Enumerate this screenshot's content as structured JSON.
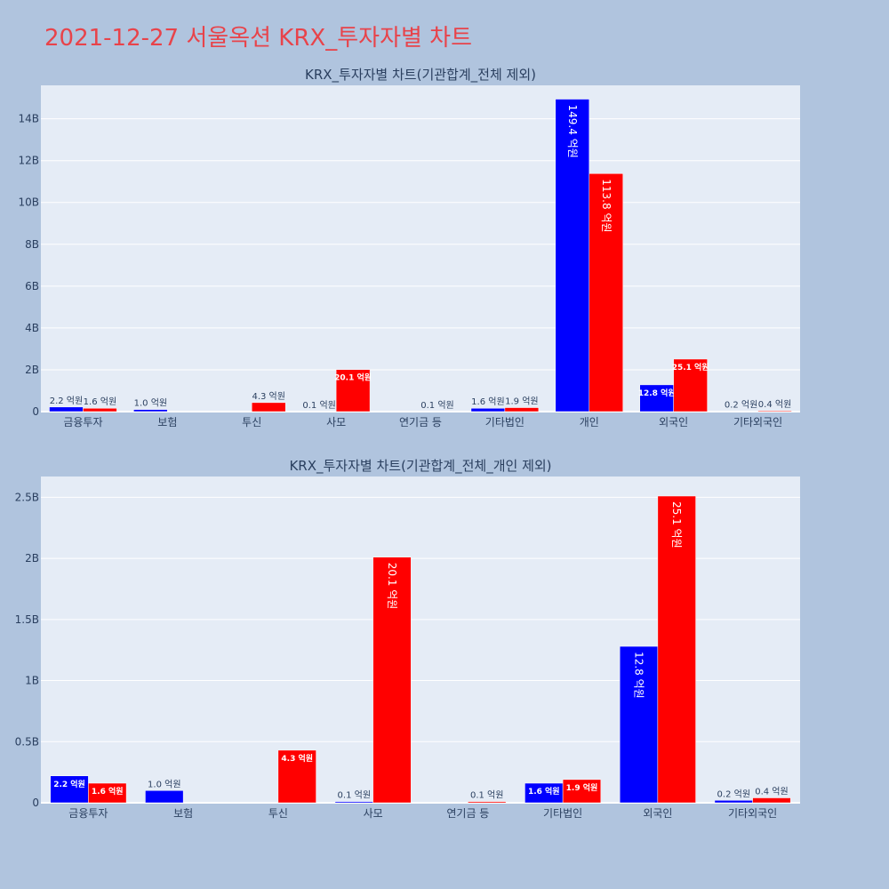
{
  "page": {
    "title": "2021-12-27 서울옥션 KRX_투자자별 차트"
  },
  "colors": {
    "background": "#b0c4de",
    "plot_bg": "#e5ecf6",
    "grid": "#ffffff",
    "buy": "#0000ff",
    "sell": "#ff0000",
    "title": "#e8434a"
  },
  "chart_data": [
    {
      "type": "bar",
      "title": "KRX_투자자별 차트(기관합계_전체 제외)",
      "xlabel": "",
      "ylabel": "",
      "ylim": [
        0,
        15.6
      ],
      "yticks": [
        0,
        2,
        4,
        6,
        8,
        10,
        12,
        14
      ],
      "ytick_labels": [
        "0",
        "2B",
        "4B",
        "6B",
        "8B",
        "10B",
        "12B",
        "14B"
      ],
      "grid": true,
      "categories": [
        "금융투자",
        "보험",
        "투신",
        "사모",
        "연기금 등",
        "기타법인",
        "개인",
        "외국인",
        "기타외국인"
      ],
      "series": [
        {
          "color": "#0000ff",
          "values": [
            0.22,
            0.1,
            0,
            0.01,
            0,
            0.16,
            14.94,
            1.28,
            0.02
          ],
          "labels": [
            "2.2 억원",
            "1.0 억원",
            "",
            "0.1 억원",
            "",
            "1.6 억원",
            "149.4 억원",
            "12.8 억원",
            "0.2 억원"
          ]
        },
        {
          "color": "#ff0000",
          "values": [
            0.16,
            0,
            0.43,
            2.01,
            0.01,
            0.19,
            11.38,
            2.51,
            0.04
          ],
          "labels": [
            "1.6 억원",
            "",
            "4.3 억원",
            "20.1 억원",
            "0.1 억원",
            "1.9 억원",
            "113.8 억원",
            "25.1 억원",
            "0.4 억원"
          ]
        }
      ]
    },
    {
      "type": "bar",
      "title": "KRX_투자자별 차트(기관합계_전체_개인 제외)",
      "xlabel": "",
      "ylabel": "",
      "ylim": [
        0,
        2.67
      ],
      "yticks": [
        0,
        0.5,
        1,
        1.5,
        2,
        2.5
      ],
      "ytick_labels": [
        "0",
        "0.5B",
        "1B",
        "1.5B",
        "2B",
        "2.5B"
      ],
      "grid": true,
      "categories": [
        "금융투자",
        "보험",
        "투신",
        "사모",
        "연기금 등",
        "기타법인",
        "외국인",
        "기타외국인"
      ],
      "series": [
        {
          "color": "#0000ff",
          "values": [
            0.22,
            0.1,
            0,
            0.01,
            0,
            0.16,
            1.28,
            0.02
          ],
          "labels": [
            "2.2 억원",
            "1.0 억원",
            "",
            "0.1 억원",
            "",
            "1.6 억원",
            "12.8 억원",
            "0.2 억원"
          ]
        },
        {
          "color": "#ff0000",
          "values": [
            0.16,
            0,
            0.43,
            2.01,
            0.01,
            0.19,
            2.51,
            0.04
          ],
          "labels": [
            "1.6 억원",
            "",
            "4.3 억원",
            "20.1 억원",
            "0.1 억원",
            "1.9 억원",
            "25.1 억원",
            "0.4 억원"
          ]
        }
      ]
    }
  ]
}
